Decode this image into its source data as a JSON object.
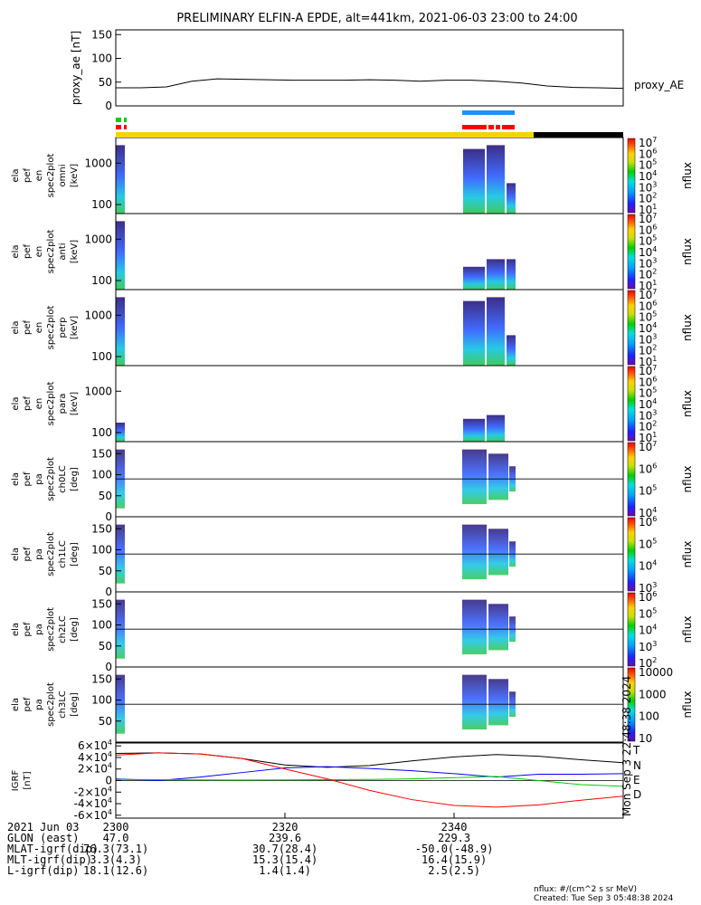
{
  "title": "PRELIMINARY ELFIN-A EPDE, alt=441km, 2021-06-03 23:00 to 24:00",
  "colors": {
    "fgm_T": "#000000",
    "fgm_N": "#0000ff",
    "fgm_E": "#00cc00",
    "fgm_D": "#ff0000",
    "bar_yellow": "#f5d400",
    "bar_black": "#000000",
    "bar_blue": "#1e90ff",
    "bar_red": "#ff0000",
    "bar_green": "#00cc00"
  },
  "chart_data": [
    {
      "type": "line",
      "panel": "proxy_ae",
      "ylabel": "proxy_ae [nT]",
      "legend": "proxy_AE",
      "ylim": [
        0,
        160
      ],
      "yticks": [
        "0",
        "50",
        "100",
        "150"
      ],
      "x_min": [
        0,
        3,
        6,
        9,
        12,
        15,
        18,
        21,
        24,
        27,
        30,
        33,
        36,
        39,
        42,
        45,
        48,
        51,
        54,
        57,
        60
      ],
      "values": [
        38,
        38,
        40,
        52,
        57,
        56,
        55,
        54,
        54,
        54,
        55,
        54,
        52,
        54,
        54,
        52,
        48,
        42,
        39,
        38,
        37
      ]
    },
    {
      "type": "heatmap",
      "panel": "spec_omni",
      "ylabel": [
        "ela",
        "pef",
        "en",
        "spec2plot",
        "omni",
        "[keV]"
      ],
      "yticks": [
        "100",
        "1000"
      ],
      "zlabel": "nflux",
      "zticks": [
        "10^1",
        "10^2",
        "10^3",
        "10^4",
        "10^5",
        "10^6",
        "10^7"
      ]
    },
    {
      "type": "heatmap",
      "panel": "spec_anti",
      "ylabel": [
        "ela",
        "pef",
        "en",
        "spec2plot",
        "anti",
        "[keV]"
      ],
      "yticks": [
        "100",
        "1000"
      ],
      "zlabel": "nflux",
      "zticks": [
        "10^1",
        "10^2",
        "10^3",
        "10^4",
        "10^5",
        "10^6",
        "10^7"
      ]
    },
    {
      "type": "heatmap",
      "panel": "spec_perp",
      "ylabel": [
        "ela",
        "pef",
        "en",
        "spec2plot",
        "perp",
        "[keV]"
      ],
      "yticks": [
        "100",
        "1000"
      ],
      "zlabel": "nflux",
      "zticks": [
        "10^1",
        "10^2",
        "10^3",
        "10^4",
        "10^5",
        "10^6",
        "10^7"
      ]
    },
    {
      "type": "heatmap",
      "panel": "spec_para",
      "ylabel": [
        "ela",
        "pef",
        "en",
        "spec2plot",
        "para",
        "[keV]"
      ],
      "yticks": [
        "100",
        "1000"
      ],
      "zlabel": "nflux",
      "zticks": [
        "10^1",
        "10^2",
        "10^3",
        "10^4",
        "10^5",
        "10^6",
        "10^7"
      ]
    },
    {
      "type": "heatmap",
      "panel": "pa_ch0",
      "ylabel": [
        "ela",
        "pef",
        "pa",
        "spec2plot",
        "ch0LC",
        "[deg]"
      ],
      "yticks": [
        "0",
        "50",
        "100",
        "150"
      ],
      "zlabel": "nflux",
      "zticks": [
        "10^4",
        "10^5",
        "10^6",
        "10^7"
      ]
    },
    {
      "type": "heatmap",
      "panel": "pa_ch1",
      "ylabel": [
        "ela",
        "pef",
        "pa",
        "spec2plot",
        "ch1LC",
        "[deg]"
      ],
      "yticks": [
        "0",
        "50",
        "100",
        "150"
      ],
      "zlabel": "nflux",
      "zticks": [
        "10^3",
        "10^4",
        "10^5",
        "10^6"
      ]
    },
    {
      "type": "heatmap",
      "panel": "pa_ch2",
      "ylabel": [
        "ela",
        "pef",
        "pa",
        "spec2plot",
        "ch2LC",
        "[deg]"
      ],
      "yticks": [
        "0",
        "50",
        "100",
        "150"
      ],
      "zlabel": "nflux",
      "zticks": [
        "10^2",
        "10^3",
        "10^4",
        "10^5",
        "10^6"
      ]
    },
    {
      "type": "heatmap",
      "panel": "pa_ch3",
      "ylabel": [
        "ela",
        "pef",
        "pa",
        "spec2plot",
        "ch3LC",
        "[deg]"
      ],
      "yticks": [
        "50",
        "100",
        "150"
      ],
      "zlabel": "nflux",
      "zticks": [
        "10",
        "100",
        "1000",
        "10000"
      ]
    },
    {
      "type": "line",
      "panel": "igrf",
      "ylabel": "IGRF [nT]",
      "ylim": [
        -65000,
        65000
      ],
      "yticks": [
        "-6×10^4",
        "-4×10^4",
        "-2×10^4",
        "0",
        "2×10^4",
        "4×10^4",
        "6×10^4"
      ],
      "x_min": [
        0,
        5,
        10,
        15,
        20,
        25,
        30,
        35,
        40,
        45,
        50,
        55,
        60
      ],
      "series": [
        {
          "name": "T",
          "values": [
            47000,
            48000,
            46000,
            38000,
            27000,
            23000,
            26000,
            34000,
            41000,
            45000,
            42000,
            36000,
            31000
          ]
        },
        {
          "name": "N",
          "values": [
            3000,
            0,
            6000,
            14000,
            22000,
            24000,
            21000,
            17000,
            12000,
            6000,
            11000,
            11000,
            12000
          ]
        },
        {
          "name": "E",
          "values": [
            2000,
            1500,
            1200,
            1000,
            1200,
            1500,
            2000,
            3000,
            5000,
            7000,
            0,
            -7000,
            -10000
          ]
        },
        {
          "name": "D",
          "values": [
            44000,
            48000,
            46000,
            38000,
            20000,
            3000,
            -17000,
            -33000,
            -43000,
            -46000,
            -42000,
            -34000,
            -27000
          ]
        }
      ]
    }
  ],
  "xaxis": {
    "row_labels": [
      "2021 Jun 03",
      "GLON (east)",
      "MLAT-igrf(dip)",
      "MLT-igrf(dip)",
      "L-igrf(dip)"
    ],
    "columns": [
      {
        "x_min": 0,
        "values": [
          "2300",
          "47.0",
          "76.3(73.1)",
          "3.3(4.3)",
          "18.1(12.6)"
        ]
      },
      {
        "x_min": 20,
        "values": [
          "2320",
          "239.6",
          "30.7(28.4)",
          "15.3(15.4)",
          "1.4(1.4)"
        ]
      },
      {
        "x_min": 40,
        "values": [
          "2340",
          "229.3",
          "-50.0(-48.9)",
          "16.4(15.9)",
          "2.5(2.5)"
        ]
      }
    ]
  },
  "side_stamp": "Mon Sep  3 22:48:38 2024",
  "credits": {
    "units": "nflux: #/(cm^2 s sr MeV)",
    "created": "Created: Tue Sep  3 05:48:38 2024"
  }
}
